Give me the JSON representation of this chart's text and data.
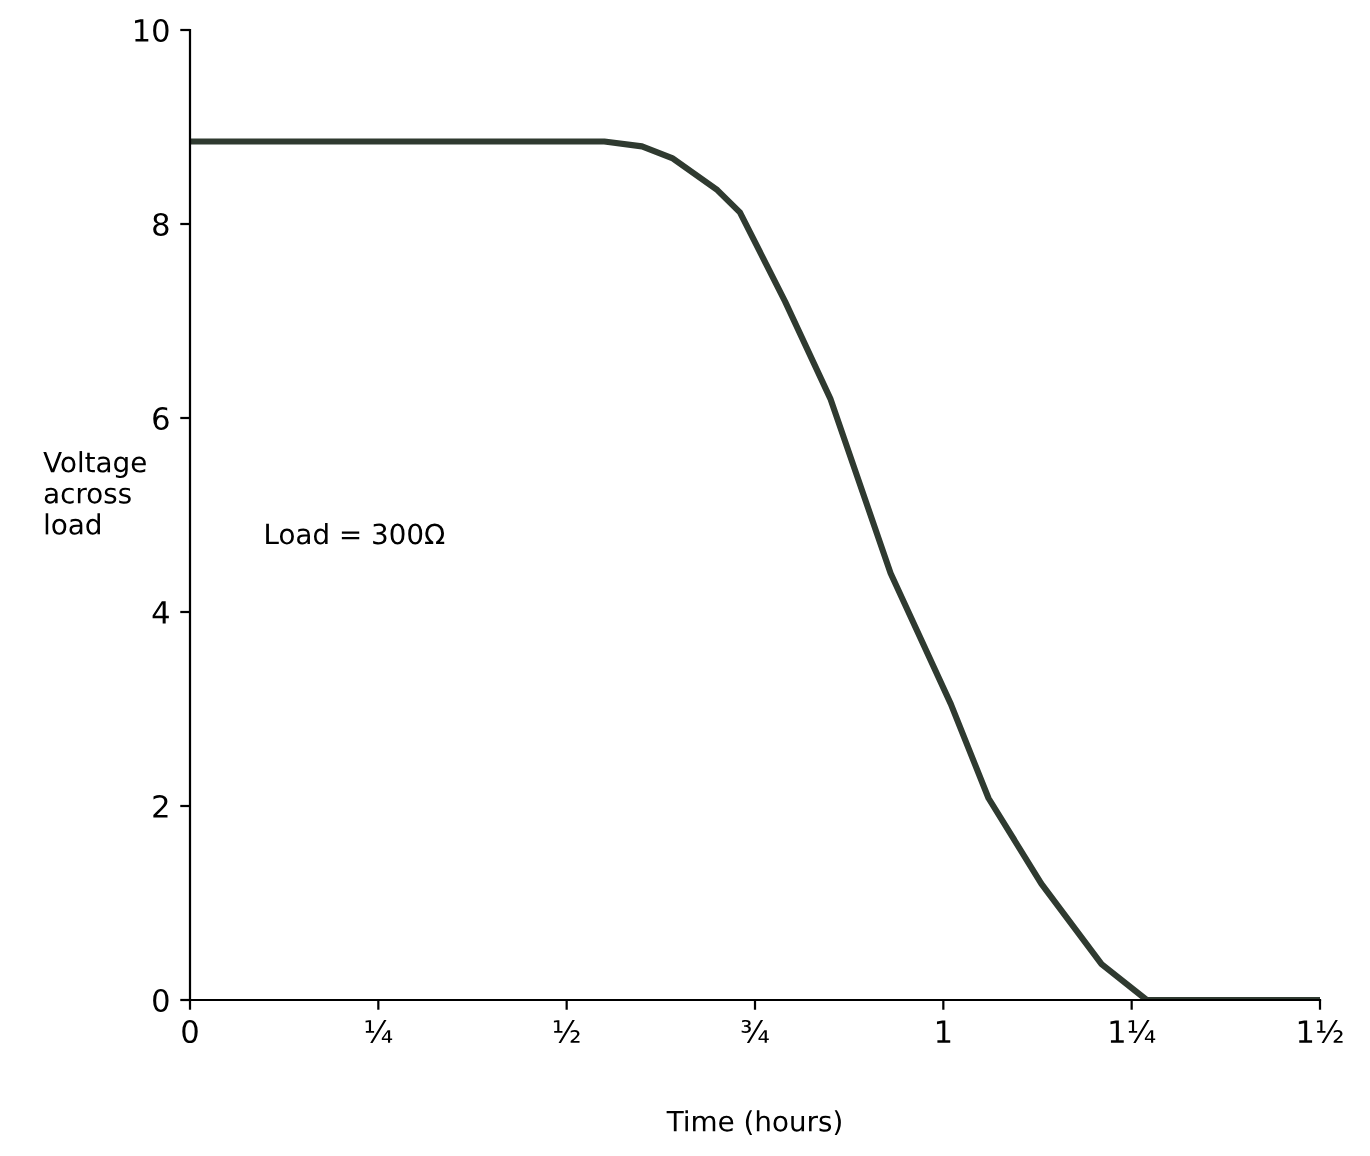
{
  "chart_data": {
    "type": "line",
    "xlabel": "Time (hours)",
    "ylabel": "Voltage\nacross\nload",
    "annotations": [
      "Load = 300Ω"
    ],
    "x": [
      0,
      0.55,
      0.6,
      0.64,
      0.7,
      0.73,
      0.79,
      0.85,
      0.93,
      1.01,
      1.06,
      1.13,
      1.21,
      1.27,
      1.5
    ],
    "series": [
      {
        "color": "#2f3a30",
        "values": [
          8.85,
          8.85,
          8.8,
          8.68,
          8.35,
          8.12,
          7.2,
          6.2,
          4.4,
          3.05,
          2.08,
          1.2,
          0.37,
          0,
          0
        ]
      }
    ],
    "xlim": [
      0,
      1.5
    ],
    "ylim": [
      0,
      10
    ],
    "xticks": [
      0,
      {
        "value": 0.25,
        "label": "¼"
      },
      {
        "value": 0.5,
        "label": "½"
      },
      {
        "value": 0.75,
        "label": "¾"
      },
      1,
      {
        "value": 1.25,
        "label": "1¼"
      },
      {
        "value": 1.5,
        "label": "1½"
      }
    ],
    "yticks": [
      0,
      2,
      4,
      6,
      8,
      10
    ],
    "grid": false,
    "legend": false,
    "marker": "none",
    "line_style": "solid"
  }
}
